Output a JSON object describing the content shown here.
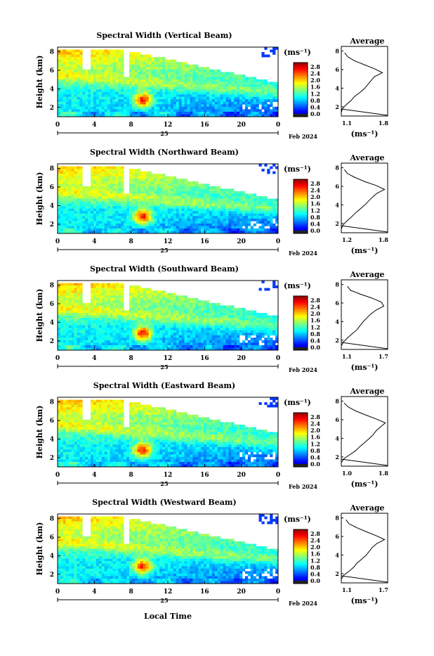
{
  "chart_data": [
    {
      "type": "heatmap",
      "title": "Spectral Width (Vertical Beam)",
      "ylabel": "Height (km)",
      "xticks": [
        "0",
        "4",
        "8",
        "12",
        "16",
        "20",
        "0"
      ],
      "yticks": [
        "2",
        "4",
        "6",
        "8"
      ],
      "date_label": "25",
      "month_label": "Feb 2024",
      "colorbar": {
        "unit": "(ms⁻¹)",
        "ticks": [
          "2.8",
          "2.4",
          "2.0",
          "1.6",
          "1.2",
          "0.8",
          "0.4",
          "0.0"
        ],
        "range": [
          0.0,
          3.0
        ]
      },
      "profile": {
        "title": "Average",
        "xticks": [
          "1.1",
          "1.8"
        ],
        "xlabel": "(ms⁻¹)",
        "yticks": [
          "2",
          "4",
          "6",
          "8"
        ],
        "xlim": [
          1.1,
          1.8
        ],
        "ylim": [
          1,
          8
        ],
        "values": [
          1.1,
          1.12,
          1.18,
          1.25,
          1.3,
          1.38,
          1.45,
          1.5,
          1.55,
          1.6,
          1.72,
          1.6,
          1.45,
          1.3,
          1.2,
          1.15
        ]
      }
    },
    {
      "type": "heatmap",
      "title": "Spectral Width (Northward Beam)",
      "ylabel": "Height (km)",
      "xticks": [
        "0",
        "4",
        "8",
        "12",
        "16",
        "20",
        "0"
      ],
      "yticks": [
        "2",
        "4",
        "6",
        "8"
      ],
      "date_label": "25",
      "month_label": "Feb 2024",
      "colorbar": {
        "unit": "(ms⁻¹)",
        "ticks": [
          "2.8",
          "2.4",
          "2.0",
          "1.6",
          "1.2",
          "0.8",
          "0.4",
          "0.0"
        ],
        "range": [
          0.0,
          3.0
        ]
      },
      "profile": {
        "title": "Average",
        "xticks": [
          "1.2",
          "1.8"
        ],
        "xlabel": "(ms⁻¹)",
        "yticks": [
          "2",
          "4",
          "6",
          "8"
        ],
        "xlim": [
          1.2,
          1.8
        ],
        "ylim": [
          1,
          8
        ],
        "values": [
          1.2,
          1.22,
          1.27,
          1.33,
          1.38,
          1.44,
          1.5,
          1.55,
          1.6,
          1.66,
          1.76,
          1.65,
          1.5,
          1.38,
          1.28,
          1.24
        ]
      }
    },
    {
      "type": "heatmap",
      "title": "Spectral Width (Southward Beam)",
      "ylabel": "Height (km)",
      "xticks": [
        "0",
        "4",
        "8",
        "12",
        "16",
        "20",
        "0"
      ],
      "yticks": [
        "2",
        "4",
        "6",
        "8"
      ],
      "date_label": "25",
      "month_label": "Feb 2024",
      "colorbar": {
        "unit": "(ms⁻¹)",
        "ticks": [
          "2.8",
          "2.4",
          "2.0",
          "1.6",
          "1.2",
          "0.8",
          "0.4",
          "0.0"
        ],
        "range": [
          0.0,
          3.0
        ]
      },
      "profile": {
        "title": "Average",
        "xticks": [
          "1.1",
          "1.7"
        ],
        "xlabel": "(ms⁻¹)",
        "yticks": [
          "2",
          "4",
          "6",
          "8"
        ],
        "xlim": [
          1.1,
          1.7
        ],
        "ylim": [
          1,
          8
        ],
        "values": [
          1.1,
          1.13,
          1.18,
          1.24,
          1.3,
          1.34,
          1.38,
          1.43,
          1.48,
          1.55,
          1.65,
          1.62,
          1.5,
          1.35,
          1.22,
          1.18
        ]
      }
    },
    {
      "type": "heatmap",
      "title": "Spectral Width (Eastward Beam)",
      "ylabel": "Height (km)",
      "xticks": [
        "0",
        "4",
        "8",
        "12",
        "16",
        "20",
        "0"
      ],
      "yticks": [
        "2",
        "4",
        "6",
        "8"
      ],
      "date_label": "25",
      "month_label": "Feb 2024",
      "colorbar": {
        "unit": "(ms⁻¹)",
        "ticks": [
          "2.8",
          "2.4",
          "2.0",
          "1.6",
          "1.2",
          "0.8",
          "0.4",
          "0.0"
        ],
        "range": [
          0.0,
          3.0
        ]
      },
      "profile": {
        "title": "Average",
        "xticks": [
          "1.0",
          "1.8"
        ],
        "xlabel": "(ms⁻¹)",
        "yticks": [
          "2",
          "4",
          "6",
          "8"
        ],
        "xlim": [
          1.0,
          1.8
        ],
        "ylim": [
          1,
          8
        ],
        "values": [
          1.0,
          1.05,
          1.15,
          1.25,
          1.32,
          1.4,
          1.48,
          1.55,
          1.6,
          1.68,
          1.76,
          1.6,
          1.42,
          1.25,
          1.12,
          1.05
        ]
      }
    },
    {
      "type": "heatmap",
      "title": "Spectral Width (Westward Beam)",
      "ylabel": "Height (km)",
      "xticks": [
        "0",
        "4",
        "8",
        "12",
        "16",
        "20",
        "0"
      ],
      "yticks": [
        "2",
        "4",
        "6",
        "8"
      ],
      "date_label": "25",
      "month_label": "Feb 2024",
      "colorbar": {
        "unit": "(ms⁻¹)",
        "ticks": [
          "2.8",
          "2.4",
          "2.0",
          "1.6",
          "1.2",
          "0.8",
          "0.4",
          "0.0"
        ],
        "range": [
          0.0,
          3.0
        ]
      },
      "profile": {
        "title": "Average",
        "xticks": [
          "1.1",
          "1.7"
        ],
        "xlabel": "(ms⁻¹)",
        "yticks": [
          "2",
          "4",
          "6",
          "8"
        ],
        "xlim": [
          1.1,
          1.7
        ],
        "ylim": [
          1,
          8
        ],
        "values": [
          1.1,
          1.13,
          1.2,
          1.26,
          1.3,
          1.36,
          1.42,
          1.46,
          1.5,
          1.56,
          1.66,
          1.55,
          1.42,
          1.3,
          1.2,
          1.16
        ]
      }
    }
  ],
  "footer": {
    "xlabel": "Local Time"
  }
}
